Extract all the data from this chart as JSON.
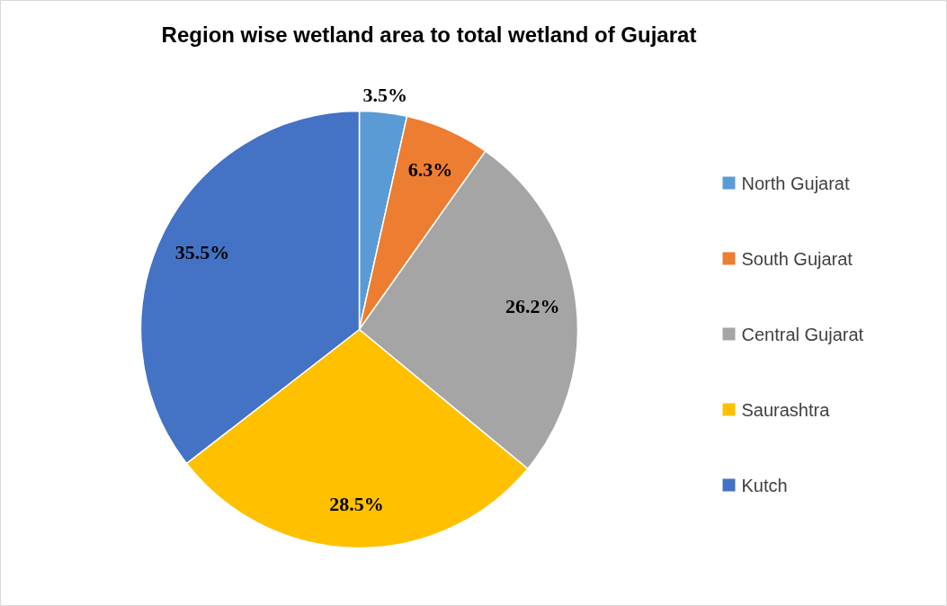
{
  "chart_data": {
    "type": "pie",
    "title": "Region wise wetland area to total wetland of Gujarat",
    "categories": [
      "North Gujarat",
      "South Gujarat",
      "Central Gujarat",
      "Saurashtra",
      "Kutch"
    ],
    "values": [
      3.5,
      6.3,
      26.2,
      28.5,
      35.5
    ],
    "colors": [
      "#5b9bd5",
      "#ed7d31",
      "#a5a5a5",
      "#ffc000",
      "#4472c4"
    ],
    "value_labels": [
      "3.5%",
      "6.3%",
      "26.2%",
      "28.5%",
      "35.5%"
    ],
    "legend": "right"
  }
}
